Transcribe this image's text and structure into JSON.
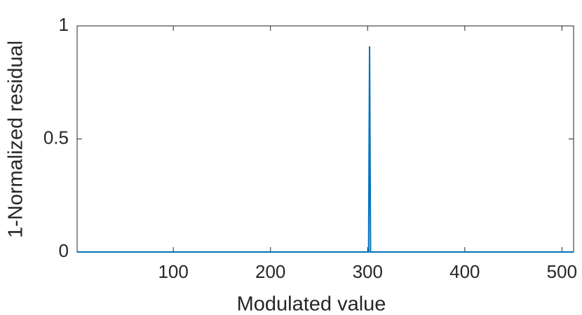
{
  "chart_data": {
    "type": "line",
    "x_label": "Modulated value",
    "y_label": "1-Normalized residual",
    "x": [
      1,
      300,
      301,
      302,
      303,
      304,
      512
    ],
    "series": [
      {
        "color": "#0072bd",
        "values": [
          0,
          0,
          0,
          0.91,
          0,
          0,
          0
        ]
      }
    ],
    "xlim": [
      1,
      512
    ],
    "xticks": [
      100,
      200,
      300,
      400,
      500
    ],
    "ylim": [
      0,
      1
    ],
    "yticks": [
      0,
      0.5,
      1
    ]
  }
}
